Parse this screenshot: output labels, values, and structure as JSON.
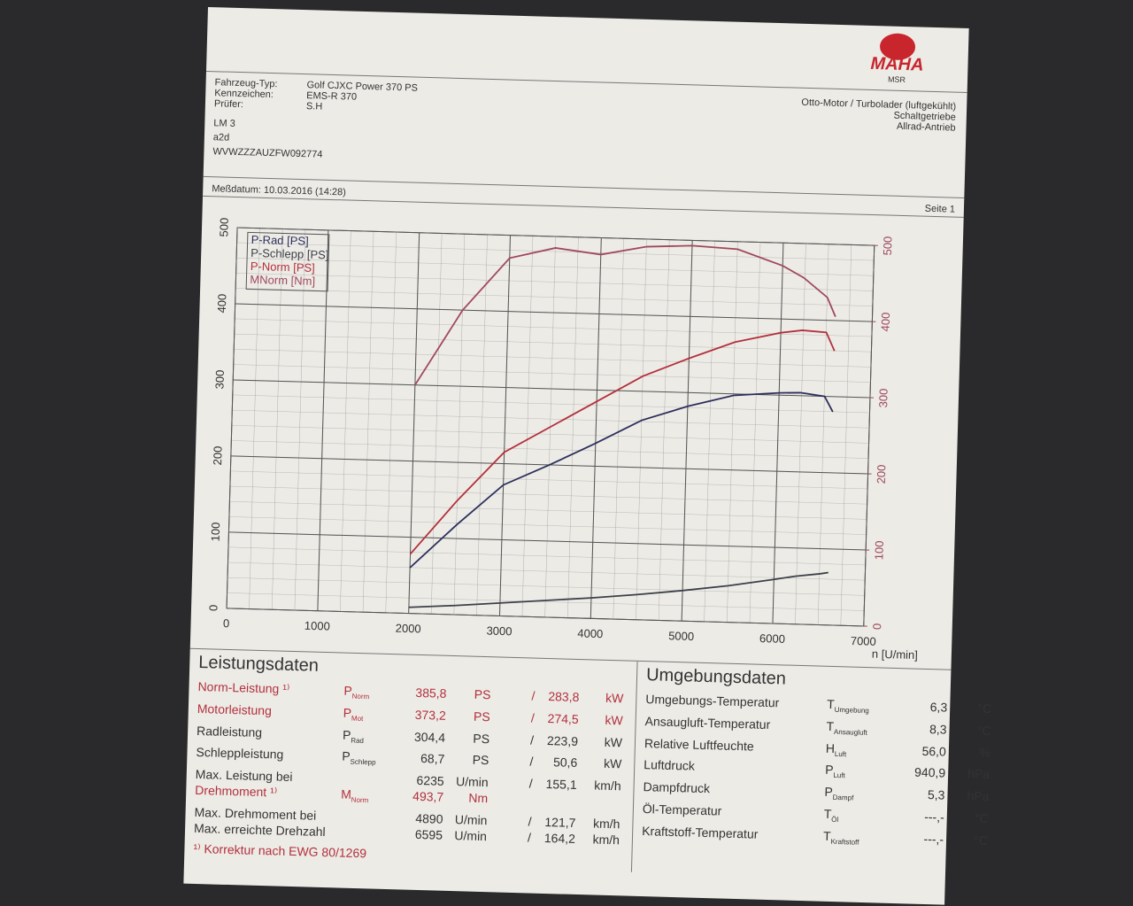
{
  "header": {
    "logo": "MAHA",
    "logo_sub": "MSR",
    "fields": [
      [
        "Fahrzeug-Typ:",
        "Golf CJXC Power 370 PS"
      ],
      [
        "Kennzeichen:",
        "EMS-R 370"
      ],
      [
        "Prüfer:",
        "S.H"
      ]
    ],
    "engine": [
      "Otto-Motor / Turbolader (luftgekühlt)",
      "Schaltgetriebe",
      "Allrad-Antrieb"
    ],
    "notes": [
      "LM 3",
      "a2d",
      "WVWZZZAUZFW092774"
    ],
    "date": "Meßdatum: 10.03.2016 (14:28)",
    "page": "Seite 1"
  },
  "chart_data": {
    "type": "line",
    "x": [
      2000,
      2500,
      3000,
      3500,
      4000,
      4500,
      5000,
      5500,
      6000,
      6235,
      6500,
      6595
    ],
    "xlim": [
      0,
      7000
    ],
    "xticks": [
      0,
      1000,
      2000,
      3000,
      4000,
      5000,
      6000,
      7000
    ],
    "x_label": "n [U/min]",
    "ylim": [
      0,
      500
    ],
    "yticks": [
      0,
      100,
      200,
      300,
      400,
      500
    ],
    "y2lim": [
      0,
      500
    ],
    "y2ticks": [
      0,
      100,
      200,
      300,
      400,
      500
    ],
    "grid": true,
    "legend": "upper left",
    "series": [
      {
        "name": "P-Rad [PS]",
        "color": "#2c2f5c",
        "values": [
          60,
          118,
          172,
          200,
          230,
          262,
          282,
          298,
          303,
          304,
          300,
          280
        ]
      },
      {
        "name": "P-Schlepp [PS]",
        "color": "#3c4048",
        "values": [
          8,
          12,
          17,
          22,
          27,
          33,
          40,
          48,
          58,
          63,
          67,
          69
        ]
      },
      {
        "name": "P-Norm [PS]",
        "color": "#b3303c",
        "values": [
          78,
          150,
          215,
          250,
          285,
          320,
          345,
          368,
          382,
          386,
          384,
          360
        ]
      },
      {
        "name": "MNorm [Nm]",
        "color": "#a0485c",
        "axis": "y2",
        "values": [
          300,
          400,
          470,
          485,
          478,
          490,
          493,
          490,
          470,
          455,
          430,
          405
        ]
      }
    ]
  },
  "performance": {
    "title": "Leistungsdaten",
    "rows": [
      {
        "label": "Norm-Leistung ¹⁾",
        "symbol": "P",
        "sub": "Norm",
        "cells": [
          "385,8",
          "PS",
          "/",
          "283,8",
          "kW"
        ],
        "red": true
      },
      {
        "label": "Motorleistung",
        "symbol": "P",
        "sub": "Mot",
        "cells": [
          "373,2",
          "PS",
          "/",
          "274,5",
          "kW"
        ],
        "red": true
      },
      {
        "label": "Radleistung",
        "symbol": "P",
        "sub": "Rad",
        "cells": [
          "304,4",
          "PS",
          "/",
          "223,9",
          "kW"
        ],
        "red": false
      },
      {
        "label": "Schleppleistung",
        "symbol": "P",
        "sub": "Schlepp",
        "cells": [
          "68,7",
          "PS",
          "/",
          "50,6",
          "kW"
        ],
        "red": false
      },
      {
        "label": "Max. Leistung bei",
        "symbol": "",
        "sub": "",
        "cells": [
          "6235",
          "U/min",
          "/",
          "155,1",
          "km/h"
        ],
        "red": false
      },
      {
        "label": "Drehmoment ¹⁾",
        "symbol": "M",
        "sub": "Norm",
        "cells": [
          "493,7",
          "Nm",
          "",
          "",
          ""
        ],
        "red": true
      },
      {
        "label": "Max. Drehmoment bei",
        "symbol": "",
        "sub": "",
        "cells": [
          "4890",
          "U/min",
          "/",
          "121,7",
          "km/h"
        ],
        "red": false
      },
      {
        "label": "Max. erreichte Drehzahl",
        "symbol": "",
        "sub": "",
        "cells": [
          "6595",
          "U/min",
          "/",
          "164,2",
          "km/h"
        ],
        "red": false
      }
    ],
    "footnote": "¹⁾ Korrektur nach EWG 80/1269"
  },
  "environment": {
    "title": "Umgebungsdaten",
    "rows": [
      {
        "label": "Umgebungs-Temperatur",
        "symbol": "T",
        "sub": "Umgebung",
        "cells": [
          "6,3",
          "°C"
        ]
      },
      {
        "label": "Ansaugluft-Temperatur",
        "symbol": "T",
        "sub": "Ansaugluft",
        "cells": [
          "8,3",
          "°C"
        ]
      },
      {
        "label": "Relative Luftfeuchte",
        "symbol": "H",
        "sub": "Luft",
        "cells": [
          "56,0",
          "%"
        ]
      },
      {
        "label": "Luftdruck",
        "symbol": "P",
        "sub": "Luft",
        "cells": [
          "940,9",
          "hPa"
        ]
      },
      {
        "label": "Dampfdruck",
        "symbol": "P",
        "sub": "Dampf",
        "cells": [
          "5,3",
          "hPa"
        ]
      },
      {
        "label": "Öl-Temperatur",
        "symbol": "T",
        "sub": "Öl",
        "cells": [
          "---,-",
          "°C"
        ]
      },
      {
        "label": "Kraftstoff-Temperatur",
        "symbol": "T",
        "sub": "Kraftstoff",
        "cells": [
          "---,-",
          "°C"
        ]
      }
    ]
  }
}
